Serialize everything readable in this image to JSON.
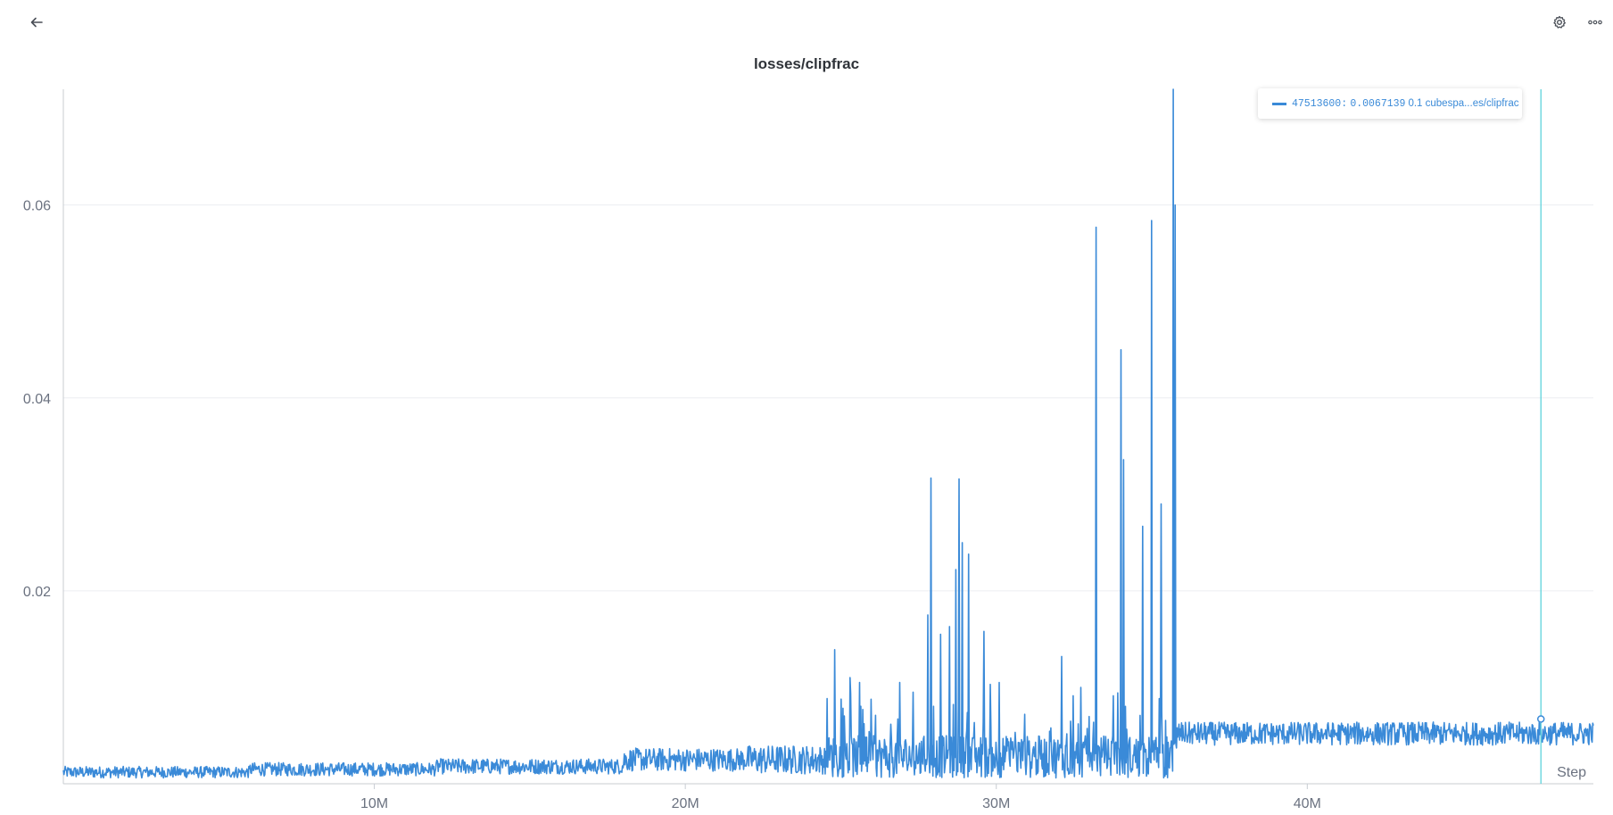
{
  "header": {
    "back_icon": "arrow-left-icon",
    "settings_icon": "gear-icon",
    "more_icon": "ellipsis-icon"
  },
  "panel": {
    "title": "losses/clipfrac"
  },
  "legend": {
    "step": "47513600:",
    "value": "0.0067139",
    "run": "0.1 cubespa...es/clipfrac"
  },
  "colors": {
    "series": "#3a8ad8",
    "cursor": "#5ed3dc",
    "grid": "#eceef1",
    "axis": "#c8ccd2"
  },
  "chart_data": {
    "type": "line",
    "title": "losses/clipfrac",
    "xlabel": "Step",
    "ylabel": "",
    "xlim": [
      0,
      49200000
    ],
    "ylim": [
      0.0,
      0.072
    ],
    "x_ticks": [
      10000000,
      20000000,
      30000000,
      40000000
    ],
    "x_tick_labels": [
      "10M",
      "20M",
      "30M",
      "40M"
    ],
    "y_ticks": [
      0.02,
      0.04,
      0.06
    ],
    "y_tick_labels": [
      "0.02",
      "0.04",
      "0.06"
    ],
    "grid": true,
    "legend_position": "top-right",
    "cursor_step": 47513600,
    "series": [
      {
        "name": "0.1 cubespa...es/clipfrac",
        "segments": [
          {
            "x_start": 0,
            "x_end": 6000000,
            "base": 0.0012,
            "noise": 0.0006
          },
          {
            "x_start": 6000000,
            "x_end": 12000000,
            "base": 0.0015,
            "noise": 0.0007
          },
          {
            "x_start": 12000000,
            "x_end": 18000000,
            "base": 0.0018,
            "noise": 0.0008
          },
          {
            "x_start": 18000000,
            "x_end": 22000000,
            "base": 0.0025,
            "noise": 0.0012
          },
          {
            "x_start": 22000000,
            "x_end": 24500000,
            "base": 0.0025,
            "noise": 0.0015
          },
          {
            "x_start": 24500000,
            "x_end": 35800000,
            "base": 0.0028,
            "noise": 0.0022
          },
          {
            "x_start": 35800000,
            "x_end": 49200000,
            "base": 0.0052,
            "noise": 0.0012
          }
        ],
        "spikes": [
          {
            "x": 24800000,
            "y": 0.0139
          },
          {
            "x": 25300000,
            "y": 0.011
          },
          {
            "x": 25600000,
            "y": 0.0105
          },
          {
            "x": 26900000,
            "y": 0.0105
          },
          {
            "x": 27800000,
            "y": 0.0175
          },
          {
            "x": 27900000,
            "y": 0.0317
          },
          {
            "x": 28200000,
            "y": 0.0155
          },
          {
            "x": 28500000,
            "y": 0.0163
          },
          {
            "x": 28700000,
            "y": 0.0222
          },
          {
            "x": 28800000,
            "y": 0.0316
          },
          {
            "x": 28900000,
            "y": 0.025
          },
          {
            "x": 29100000,
            "y": 0.0238
          },
          {
            "x": 29600000,
            "y": 0.0158
          },
          {
            "x": 30100000,
            "y": 0.0105
          },
          {
            "x": 32100000,
            "y": 0.0132
          },
          {
            "x": 33200000,
            "y": 0.0577
          },
          {
            "x": 34000000,
            "y": 0.045
          },
          {
            "x": 34100000,
            "y": 0.0336
          },
          {
            "x": 34700000,
            "y": 0.0267
          },
          {
            "x": 35000000,
            "y": 0.0584
          },
          {
            "x": 35300000,
            "y": 0.029
          },
          {
            "x": 35700000,
            "y": 0.0728
          },
          {
            "x": 35750000,
            "y": 0.06
          }
        ]
      }
    ]
  }
}
